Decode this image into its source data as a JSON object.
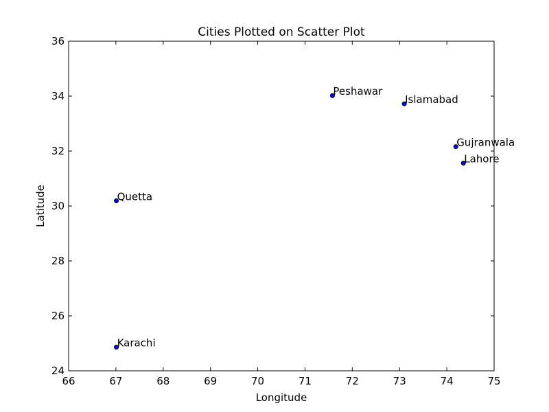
{
  "chart_data": {
    "type": "scatter",
    "title": "Cities Plotted on Scatter Plot",
    "xlabel": "Longitude",
    "ylabel": "Latitude",
    "xlim": [
      66,
      75
    ],
    "ylim": [
      24,
      36
    ],
    "xticks": [
      66,
      67,
      68,
      69,
      70,
      71,
      72,
      73,
      74,
      75
    ],
    "yticks": [
      24,
      26,
      28,
      30,
      32,
      34,
      36
    ],
    "grid": false,
    "point_color": "#0000ff",
    "points": [
      {
        "label": "Peshawar",
        "x": 71.58,
        "y": 34.02
      },
      {
        "label": "Islamabad",
        "x": 73.1,
        "y": 33.72
      },
      {
        "label": "Gujranwala",
        "x": 74.19,
        "y": 32.16
      },
      {
        "label": "Lahore",
        "x": 74.35,
        "y": 31.56
      },
      {
        "label": "Quetta",
        "x": 67.01,
        "y": 30.19
      },
      {
        "label": "Karachi",
        "x": 67.01,
        "y": 24.86
      }
    ]
  }
}
